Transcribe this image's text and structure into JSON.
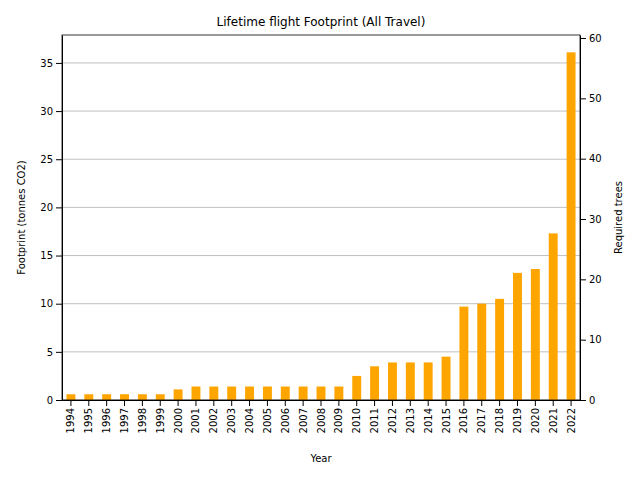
{
  "chart_data": {
    "type": "bar",
    "title": "Lifetime flight Footprint (All Travel)",
    "x_label": "Year",
    "y_label": "Footprint (tonnes CO2)",
    "y2_label": "Required trees",
    "categories": [
      "1994",
      "1995",
      "1996",
      "1997",
      "1998",
      "1999",
      "2000",
      "2001",
      "2002",
      "2003",
      "2004",
      "2005",
      "2006",
      "2007",
      "2008",
      "2009",
      "2010",
      "2011",
      "2012",
      "2013",
      "2014",
      "2015",
      "2016",
      "2017",
      "2018",
      "2019",
      "2020",
      "2021",
      "2022"
    ],
    "values": [
      0.6,
      0.6,
      0.6,
      0.6,
      0.6,
      0.6,
      1.1,
      1.4,
      1.4,
      1.4,
      1.4,
      1.4,
      1.4,
      1.4,
      1.4,
      1.4,
      2.5,
      3.5,
      3.9,
      3.9,
      3.9,
      4.5,
      9.7,
      10.0,
      10.5,
      13.2,
      13.6,
      17.3,
      36.1
    ],
    "color": "#ffa500",
    "ylim": [
      0,
      37.9
    ],
    "yticks": [
      0,
      5,
      10,
      15,
      20,
      25,
      30,
      35
    ],
    "y2lim": [
      0,
      60.5
    ],
    "y2ticks": [
      0,
      10,
      20,
      30,
      40,
      50,
      60
    ],
    "grid": true
  }
}
